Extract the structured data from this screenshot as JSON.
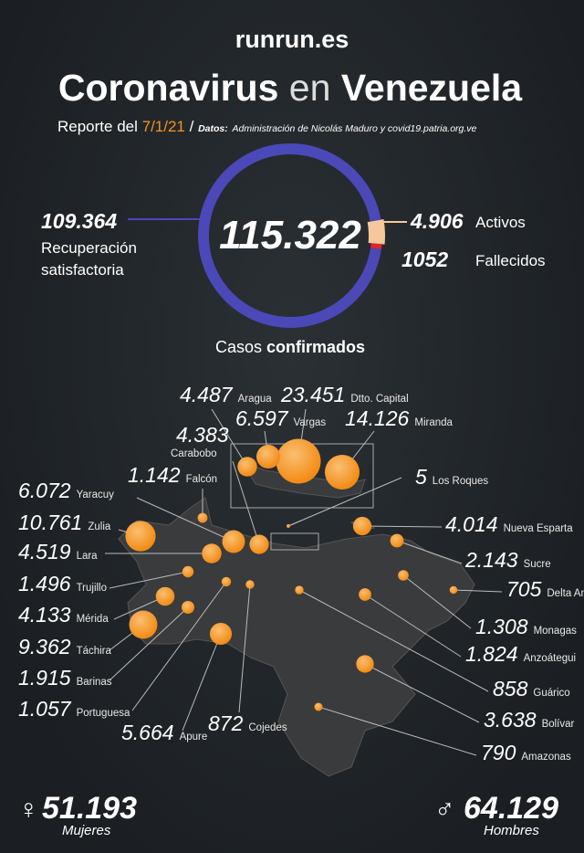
{
  "header": {
    "brand": "runrun.es",
    "title_parts": [
      "Coronavirus",
      "en",
      "Venezuela"
    ],
    "report_prefix": "Reporte del",
    "report_date": "7/1/21",
    "separator": "/",
    "source_label": "Datos:",
    "source": "Administración de Nicolás Maduro y covid19.patria.org.ve"
  },
  "chart_data": [
    {
      "type": "donut",
      "subtitle_parts": [
        "Casos",
        "confirmados"
      ],
      "total": {
        "value": 115322,
        "label": "115.322"
      },
      "categories": [
        "Recuperación satisfactoria",
        "Activos",
        "Fallecidos"
      ],
      "values": [
        109364,
        4906,
        1052
      ],
      "value_labels": [
        "109.364",
        "4.906",
        "1052"
      ],
      "colors": [
        "#4b48b8",
        "#f6c79a",
        "#e0262b"
      ],
      "label_colors": [
        "#7c79dc",
        "#f7931e",
        "#e0262b"
      ]
    },
    {
      "type": "bubble-map",
      "color": "#f7931e",
      "categories": [
        "Aragua",
        "Dtto. Capital",
        "Vargas",
        "Miranda",
        "Carabobo",
        "Falcón",
        "Yaracuy",
        "Zulia",
        "Lara",
        "Trujillo",
        "Mérida",
        "Táchira",
        "Barinas",
        "Portuguesa",
        "Apure",
        "Cojedes",
        "Los Roques",
        "Nueva Esparta",
        "Sucre",
        "Delta Amacuro",
        "Monagas",
        "Anzoátegui",
        "Guárico",
        "Bolívar",
        "Amazonas"
      ],
      "values": [
        4487,
        23451,
        6597,
        14126,
        4383,
        1142,
        6072,
        10761,
        4519,
        1496,
        4133,
        9362,
        1915,
        1057,
        5664,
        872,
        5,
        4014,
        2143,
        705,
        1308,
        1824,
        858,
        3638,
        790
      ],
      "value_labels": [
        "4.487",
        "23.451",
        "6.597",
        "14.126",
        "4.383",
        "1.142",
        "6.072",
        "10.761",
        "4.519",
        "1.496",
        "4.133",
        "9.362",
        "1.915",
        "1.057",
        "5.664",
        "872",
        "5",
        "4.014",
        "2.143",
        "705",
        "1.308",
        "1.824",
        "858",
        "3.638",
        "790"
      ]
    }
  ],
  "gender": {
    "female": {
      "symbol": "♀",
      "count": "51.193",
      "label": "Mujeres"
    },
    "male": {
      "symbol": "♂",
      "count": "64.129",
      "label": "Hombres"
    }
  }
}
